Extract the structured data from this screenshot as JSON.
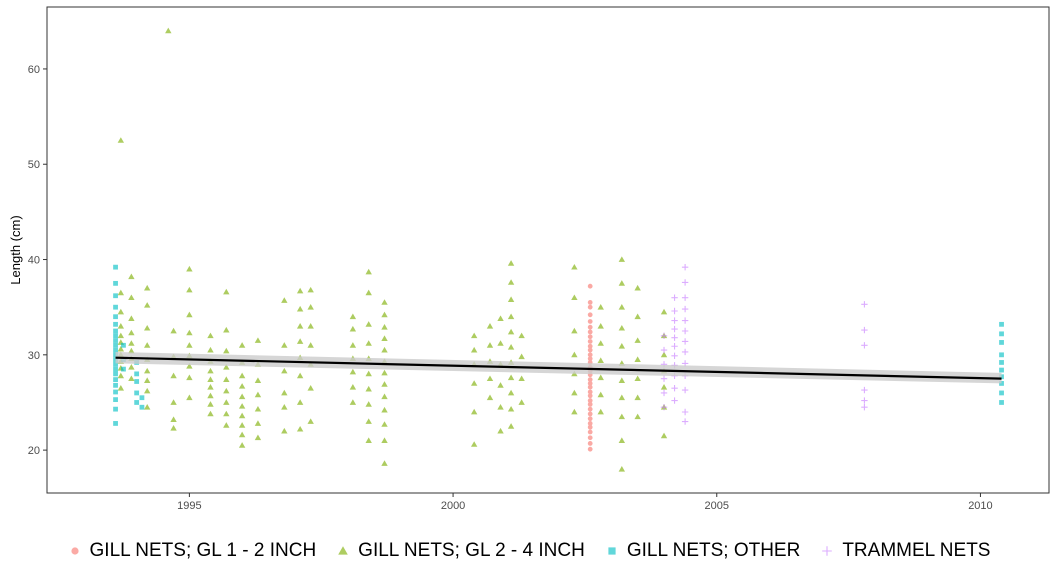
{
  "chart_data": {
    "type": "scatter",
    "title": "",
    "xlabel": "",
    "ylabel": "Length (cm)",
    "xlim": [
      1992.3,
      2011.3
    ],
    "ylim": [
      15.5,
      66.5
    ],
    "x_ticks": [
      1995,
      2000,
      2005,
      2010
    ],
    "y_ticks": [
      20,
      30,
      40,
      50,
      60
    ],
    "grid": false,
    "legend_position": "bottom",
    "series": [
      {
        "name": "GILL NETS; GL 1 - 2 INCH",
        "color": "#F8766D",
        "marker": "circle",
        "groups": [
          {
            "x": 2002.6,
            "values": [
              20.1,
              20.7,
              21.3,
              21.9,
              22.4,
              22.8,
              23.3,
              23.8,
              24.3,
              24.8,
              25.2,
              25.7,
              26.1,
              26.6,
              27.0,
              27.4,
              27.9,
              28.3,
              28.7,
              29.2,
              29.6,
              30.0,
              30.5,
              30.9,
              31.4,
              31.9,
              32.4,
              32.9,
              33.5,
              34.2,
              35.0,
              35.5,
              37.2
            ]
          }
        ]
      },
      {
        "name": "GILL NETS; GL 2 - 4 INCH",
        "color": "#7CAE00",
        "marker": "triangle",
        "groups": [
          {
            "x": 1993.7,
            "values": [
              26.5,
              27.8,
              28.6,
              29.3,
              30.0,
              30.6,
              31.3,
              32.0,
              33.0,
              34.5,
              36.5,
              52.5
            ]
          },
          {
            "x": 1993.9,
            "values": [
              27.5,
              28.7,
              29.6,
              30.4,
              31.2,
              32.3,
              33.8,
              36.0,
              38.2
            ]
          },
          {
            "x": 1994.2,
            "values": [
              24.5,
              26.2,
              27.3,
              28.3,
              29.5,
              31.0,
              32.8,
              35.2,
              37.0
            ]
          },
          {
            "x": 1994.6,
            "values": [
              64.0
            ]
          },
          {
            "x": 1994.7,
            "values": [
              22.3,
              23.2,
              25.0,
              27.8,
              29.8,
              32.5
            ]
          },
          {
            "x": 1995.0,
            "values": [
              25.5,
              27.6,
              28.8,
              29.9,
              31.0,
              32.3,
              34.2,
              36.8,
              39.0
            ]
          },
          {
            "x": 1995.4,
            "values": [
              23.8,
              24.8,
              25.7,
              26.6,
              27.4,
              28.3,
              29.3,
              30.5,
              32.0
            ]
          },
          {
            "x": 1995.7,
            "values": [
              22.6,
              23.8,
              25.0,
              26.2,
              27.4,
              28.7,
              30.4,
              32.6,
              36.6
            ]
          },
          {
            "x": 1996.0,
            "values": [
              20.5,
              21.6,
              22.6,
              23.6,
              24.6,
              25.6,
              26.7,
              27.8,
              29.2,
              31.0
            ]
          },
          {
            "x": 1996.3,
            "values": [
              21.3,
              22.8,
              24.3,
              25.8,
              27.3,
              29.0,
              31.5
            ]
          },
          {
            "x": 1996.8,
            "values": [
              22.0,
              24.5,
              26.0,
              28.3,
              31.0,
              35.7
            ]
          },
          {
            "x": 1997.1,
            "values": [
              22.2,
              25.0,
              27.8,
              29.7,
              31.4,
              33.0,
              34.8,
              36.7
            ]
          },
          {
            "x": 1997.3,
            "values": [
              23.0,
              26.5,
              29.0,
              31.0,
              33.0,
              35.0,
              36.8
            ]
          },
          {
            "x": 1998.1,
            "values": [
              25.0,
              26.6,
              28.2,
              29.6,
              31.0,
              32.7,
              34.0
            ]
          },
          {
            "x": 1998.4,
            "values": [
              21.0,
              23.0,
              24.8,
              26.4,
              28.0,
              29.6,
              31.2,
              33.2,
              36.5,
              38.7
            ]
          },
          {
            "x": 1998.7,
            "values": [
              18.6,
              21.0,
              22.7,
              24.2,
              25.6,
              26.9,
              28.1,
              29.3,
              30.5,
              31.7,
              32.9,
              34.2,
              35.5
            ]
          },
          {
            "x": 2000.4,
            "values": [
              20.6,
              24.0,
              27.0,
              29.0,
              30.5,
              32.0
            ]
          },
          {
            "x": 2000.7,
            "values": [
              25.5,
              27.5,
              29.3,
              31.0,
              33.0
            ]
          },
          {
            "x": 2000.9,
            "values": [
              22.0,
              24.5,
              26.8,
              29.0,
              31.2,
              33.8
            ]
          },
          {
            "x": 2001.1,
            "values": [
              22.5,
              24.3,
              26.0,
              27.6,
              29.2,
              30.8,
              32.4,
              34.0,
              35.8,
              37.6,
              39.6
            ]
          },
          {
            "x": 2001.3,
            "values": [
              25.0,
              27.5,
              29.8,
              32.0
            ]
          },
          {
            "x": 2002.3,
            "values": [
              24.0,
              26.0,
              28.0,
              30.0,
              32.5,
              36.0,
              39.2
            ]
          },
          {
            "x": 2002.8,
            "values": [
              24.0,
              25.8,
              27.6,
              29.4,
              31.2,
              33.0,
              35.0
            ]
          },
          {
            "x": 2003.2,
            "values": [
              18.0,
              21.0,
              23.5,
              25.5,
              27.3,
              29.1,
              30.9,
              32.8,
              35.0,
              37.5,
              40.0
            ]
          },
          {
            "x": 2003.5,
            "values": [
              23.5,
              25.5,
              27.5,
              29.5,
              31.5,
              34.0,
              37.0
            ]
          },
          {
            "x": 2004.0,
            "values": [
              21.5,
              24.5,
              26.6,
              28.3,
              30.0,
              32.0,
              34.5
            ]
          }
        ]
      },
      {
        "name": "GILL NETS; OTHER",
        "color": "#00BFC4",
        "marker": "square",
        "groups": [
          {
            "x": 1993.6,
            "values": [
              22.8,
              24.3,
              25.3,
              26.1,
              26.8,
              27.4,
              28.0,
              28.5,
              29.0,
              29.5,
              30.0,
              30.5,
              31.0,
              31.5,
              32.0,
              32.5,
              33.2,
              34.0,
              35.0,
              36.2,
              37.5,
              39.2
            ]
          },
          {
            "x": 1993.75,
            "values": [
              28.5,
              29.5,
              31.0
            ]
          },
          {
            "x": 1994.0,
            "values": [
              25.0,
              26.0,
              27.2,
              28.0,
              29.2
            ]
          },
          {
            "x": 1994.1,
            "values": [
              24.5,
              25.5
            ]
          },
          {
            "x": 2010.4,
            "values": [
              25.0,
              26.0,
              27.0,
              27.7,
              28.4,
              29.2,
              30.0,
              31.3,
              32.2,
              33.2
            ]
          }
        ]
      },
      {
        "name": "TRAMMEL NETS",
        "color": "#C77CFF",
        "marker": "plus",
        "groups": [
          {
            "x": 2004.0,
            "values": [
              24.5,
              26.0,
              27.5,
              29.0,
              30.5,
              32.0
            ]
          },
          {
            "x": 2004.2,
            "values": [
              25.2,
              26.5,
              27.8,
              28.9,
              29.9,
              30.9,
              31.8,
              32.7,
              33.6,
              34.6,
              36.0
            ]
          },
          {
            "x": 2004.4,
            "values": [
              23.0,
              24.0,
              26.3,
              27.8,
              29.1,
              30.3,
              31.4,
              32.5,
              33.6,
              34.8,
              36.0,
              37.6,
              39.2
            ]
          },
          {
            "x": 2007.8,
            "values": [
              24.5,
              25.2,
              26.3,
              31.0,
              32.6,
              35.3
            ]
          }
        ]
      }
    ],
    "trend": {
      "color": "#000000",
      "band_color": "#cccccc",
      "x": [
        1993.6,
        2010.4
      ],
      "y": [
        29.7,
        27.5
      ],
      "band": [
        [
          29.1,
          30.3
        ],
        [
          27.0,
          28.1
        ]
      ]
    }
  }
}
